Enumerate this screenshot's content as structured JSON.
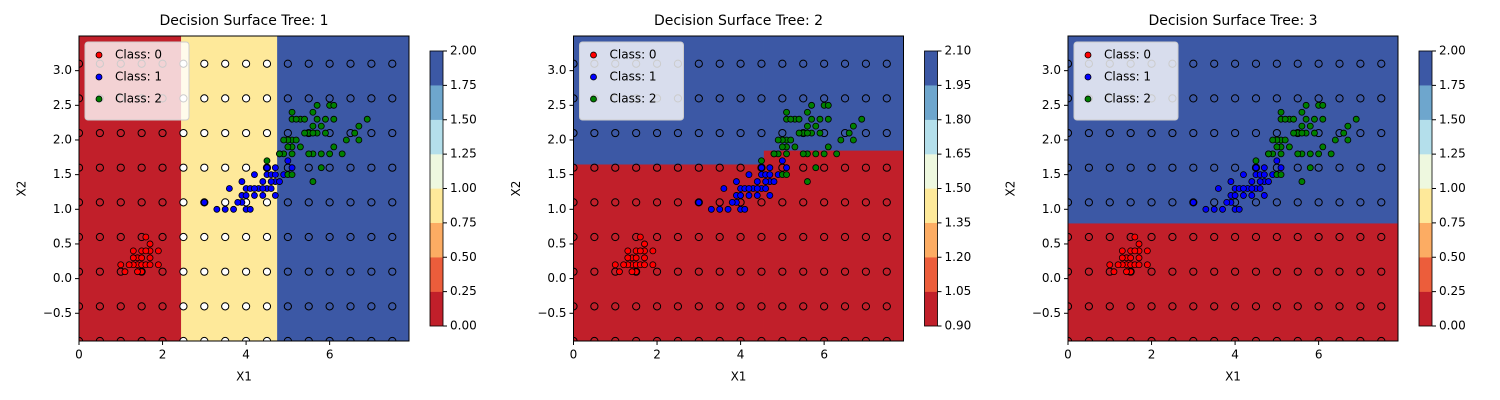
{
  "chart_data": [
    {
      "type": "scatter",
      "title": "Decision Surface Tree: 1",
      "xlabel": "X1",
      "ylabel": "X2",
      "xlim": [
        0,
        7.9
      ],
      "ylim": [
        -0.9,
        3.5
      ],
      "xticks": [
        0,
        2,
        4,
        6
      ],
      "yticks": [
        {
          "value": -0.5,
          "label": "−0.5"
        },
        {
          "value": 0,
          "label": "0.0"
        },
        0.5,
        {
          "value": 1,
          "label": "1.0"
        },
        1.5,
        {
          "value": 2,
          "label": "2.0"
        },
        2.5,
        {
          "value": 3,
          "label": "3.0"
        }
      ],
      "legend": "upper left",
      "regions": [
        {
          "x": [
            0,
            2.45
          ],
          "y": [
            -0.9,
            3.5
          ],
          "color": "#c11f2a"
        },
        {
          "x": [
            2.45,
            4.75
          ],
          "y": [
            -0.9,
            3.5
          ],
          "color": "#fee99a",
          "point_color": "#ffffff"
        },
        {
          "x": [
            4.75,
            7.9
          ],
          "y": [
            -0.9,
            3.5
          ],
          "color": "#3c58a5"
        }
      ],
      "grid_x": [
        0,
        0.5,
        1,
        1.5,
        2,
        2.5,
        3,
        3.5,
        4,
        4.5,
        5,
        5.5,
        6,
        6.5,
        7,
        7.5
      ],
      "grid_y": [
        -0.9,
        -0.4,
        0.1,
        0.6,
        1.1,
        1.6,
        2.1,
        2.6,
        3.1
      ],
      "colorbar": {
        "ticks": [
          {
            "value": 0,
            "label": "0.00"
          },
          0.25,
          {
            "value": 0.5,
            "label": "0.50"
          },
          0.75,
          {
            "value": 1,
            "label": "1.00"
          },
          1.25,
          {
            "value": 1.5,
            "label": "1.50"
          },
          1.75,
          {
            "value": 2,
            "label": "2.00"
          }
        ],
        "colors": [
          "#c11f2a",
          "#ec5d3b",
          "#fcac63",
          "#fee99a",
          "#eef8df",
          "#b4dfeb",
          "#6ea6cd",
          "#3c58a5"
        ]
      },
      "series": [
        {
          "name": "Class: 0",
          "color": "#ff0000",
          "x": [
            1.4,
            1.3,
            1.5,
            1.7,
            1.4,
            1.5,
            1.6,
            1.4,
            1.1,
            1.2,
            1.5,
            1.3,
            1.7,
            1.5,
            1.7,
            1.0,
            1.7,
            1.9,
            1.6,
            1.3,
            1.6,
            1.9
          ],
          "y": [
            0.2,
            0.2,
            0.2,
            0.4,
            0.3,
            0.1,
            0.2,
            0.1,
            0.1,
            0.2,
            0.4,
            0.4,
            0.3,
            0.3,
            0.2,
            0.2,
            0.5,
            0.2,
            0.4,
            0.3,
            0.6,
            0.4
          ]
        },
        {
          "name": "Class: 1",
          "color": "#0000ff",
          "x": [
            4.7,
            4.5,
            4.9,
            4.0,
            4.6,
            4.5,
            4.7,
            3.3,
            4.6,
            3.9,
            3.5,
            4.2,
            4.0,
            3.6,
            4.4,
            4.1,
            3.9,
            4.8,
            4.7,
            4.3,
            4.8,
            5.0,
            3.8,
            3.7,
            3.9,
            5.1,
            4.5,
            4.7,
            4.4,
            4.1,
            4.4,
            4.6,
            4.0,
            4.2,
            4.2,
            3.0
          ],
          "y": [
            1.4,
            1.5,
            1.5,
            1.3,
            1.5,
            1.3,
            1.6,
            1.0,
            1.3,
            1.4,
            1.0,
            1.5,
            1.0,
            1.3,
            1.4,
            1.0,
            1.1,
            1.8,
            1.2,
            1.3,
            1.4,
            1.7,
            1.1,
            1.0,
            1.2,
            1.6,
            1.6,
            1.5,
            1.3,
            1.3,
            1.2,
            1.4,
            1.2,
            1.3,
            1.2,
            1.1
          ]
        },
        {
          "name": "Class: 2",
          "color": "#008000",
          "x": [
            6.0,
            5.1,
            5.9,
            5.6,
            5.8,
            6.6,
            4.5,
            6.3,
            5.8,
            6.1,
            5.1,
            5.3,
            5.5,
            5.0,
            5.1,
            5.3,
            5.5,
            6.7,
            6.9,
            5.0,
            5.7,
            4.9,
            6.7,
            4.9,
            5.7,
            6.0,
            4.8,
            5.6,
            5.8,
            6.1,
            6.4,
            5.6,
            5.1,
            5.6,
            6.1,
            5.6,
            5.4,
            5.1,
            5.9,
            5.7,
            5.2,
            5.0,
            5.2,
            5.4,
            5.1
          ],
          "y": [
            2.5,
            1.9,
            2.1,
            1.8,
            2.2,
            2.1,
            1.7,
            1.8,
            1.8,
            2.5,
            2.0,
            1.9,
            2.1,
            2.0,
            2.4,
            2.3,
            1.8,
            2.2,
            2.3,
            1.5,
            2.3,
            2.0,
            2.0,
            1.8,
            2.1,
            1.8,
            1.8,
            2.1,
            1.6,
            1.9,
            2.0,
            2.2,
            1.5,
            1.4,
            2.3,
            2.4,
            2.1,
            2.3,
            2.3,
            2.5,
            2.3,
            1.9,
            2.0,
            2.3,
            1.8
          ]
        }
      ]
    },
    {
      "type": "scatter",
      "title": "Decision Surface Tree: 2",
      "xlabel": "X1",
      "ylabel": "X2",
      "xlim": [
        0,
        7.9
      ],
      "ylim": [
        -0.9,
        3.5
      ],
      "xticks": [
        0,
        2,
        4,
        6
      ],
      "yticks": [
        {
          "value": -0.5,
          "label": "−0.5"
        },
        {
          "value": 0,
          "label": "0.0"
        },
        0.5,
        {
          "value": 1,
          "label": "1.0"
        },
        1.5,
        {
          "value": 2,
          "label": "2.0"
        },
        2.5,
        {
          "value": 3,
          "label": "3.0"
        }
      ],
      "legend": "upper left",
      "regions": [
        {
          "x": [
            0,
            4.55
          ],
          "y": [
            -0.9,
            1.65
          ],
          "color": "#c11f2a"
        },
        {
          "x": [
            4.55,
            7.9
          ],
          "y": [
            -0.9,
            1.85
          ],
          "color": "#c11f2a"
        },
        {
          "x": [
            0,
            4.55
          ],
          "y": [
            1.65,
            3.5
          ],
          "color": "#3c58a5"
        },
        {
          "x": [
            4.55,
            7.9
          ],
          "y": [
            1.85,
            3.5
          ],
          "color": "#3c58a5"
        }
      ],
      "grid_x": [
        0,
        0.5,
        1,
        1.5,
        2,
        2.5,
        3,
        3.5,
        4,
        4.5,
        5,
        5.5,
        6,
        6.5,
        7,
        7.5
      ],
      "grid_y": [
        -0.9,
        -0.4,
        0.1,
        0.6,
        1.1,
        1.6,
        2.1,
        2.6,
        3.1
      ],
      "colorbar": {
        "ticks": [
          {
            "value": 0.9,
            "label": "0.90"
          },
          1.05,
          {
            "value": 1.2,
            "label": "1.20"
          },
          1.35,
          {
            "value": 1.5,
            "label": "1.50"
          },
          1.65,
          {
            "value": 1.8,
            "label": "1.80"
          },
          1.95,
          {
            "value": 2.1,
            "label": "2.10"
          }
        ],
        "colors": [
          "#c11f2a",
          "#ec5d3b",
          "#fcac63",
          "#fee99a",
          "#eef8df",
          "#b4dfeb",
          "#6ea6cd",
          "#3c58a5"
        ]
      },
      "series": [
        {
          "name": "Class: 0",
          "color": "#ff0000",
          "x": [
            1.4,
            1.3,
            1.5,
            1.7,
            1.4,
            1.5,
            1.6,
            1.4,
            1.1,
            1.2,
            1.5,
            1.3,
            1.7,
            1.5,
            1.7,
            1.0,
            1.7,
            1.9,
            1.6,
            1.3,
            1.6,
            1.9
          ],
          "y": [
            0.2,
            0.2,
            0.2,
            0.4,
            0.3,
            0.1,
            0.2,
            0.1,
            0.1,
            0.2,
            0.4,
            0.4,
            0.3,
            0.3,
            0.2,
            0.2,
            0.5,
            0.2,
            0.4,
            0.3,
            0.6,
            0.4
          ]
        },
        {
          "name": "Class: 1",
          "color": "#0000ff",
          "x": [
            4.7,
            4.5,
            4.9,
            4.0,
            4.6,
            4.5,
            4.7,
            3.3,
            4.6,
            3.9,
            3.5,
            4.2,
            4.0,
            3.6,
            4.4,
            4.1,
            3.9,
            4.8,
            4.7,
            4.3,
            4.8,
            5.0,
            3.8,
            3.7,
            3.9,
            5.1,
            4.5,
            4.7,
            4.4,
            4.1,
            4.4,
            4.6,
            4.0,
            4.2,
            4.2,
            3.0
          ],
          "y": [
            1.4,
            1.5,
            1.5,
            1.3,
            1.5,
            1.3,
            1.6,
            1.0,
            1.3,
            1.4,
            1.0,
            1.5,
            1.0,
            1.3,
            1.4,
            1.0,
            1.1,
            1.8,
            1.2,
            1.3,
            1.4,
            1.7,
            1.1,
            1.0,
            1.2,
            1.6,
            1.6,
            1.5,
            1.3,
            1.3,
            1.2,
            1.4,
            1.2,
            1.3,
            1.2,
            1.1
          ]
        },
        {
          "name": "Class: 2",
          "color": "#008000",
          "x": [
            6.0,
            5.1,
            5.9,
            5.6,
            5.8,
            6.6,
            4.5,
            6.3,
            5.8,
            6.1,
            5.1,
            5.3,
            5.5,
            5.0,
            5.1,
            5.3,
            5.5,
            6.7,
            6.9,
            5.0,
            5.7,
            4.9,
            6.7,
            4.9,
            5.7,
            6.0,
            4.8,
            5.6,
            5.8,
            6.1,
            6.4,
            5.6,
            5.1,
            5.6,
            6.1,
            5.6,
            5.4,
            5.1,
            5.9,
            5.7,
            5.2,
            5.0,
            5.2,
            5.4,
            5.1
          ],
          "y": [
            2.5,
            1.9,
            2.1,
            1.8,
            2.2,
            2.1,
            1.7,
            1.8,
            1.8,
            2.5,
            2.0,
            1.9,
            2.1,
            2.0,
            2.4,
            2.3,
            1.8,
            2.2,
            2.3,
            1.5,
            2.3,
            2.0,
            2.0,
            1.8,
            2.1,
            1.8,
            1.8,
            2.1,
            1.6,
            1.9,
            2.0,
            2.2,
            1.5,
            1.4,
            2.3,
            2.4,
            2.1,
            2.3,
            2.3,
            2.5,
            2.3,
            1.9,
            2.0,
            2.3,
            1.8
          ]
        }
      ]
    },
    {
      "type": "scatter",
      "title": "Decision Surface Tree: 3",
      "xlabel": "X1",
      "ylabel": "X2",
      "xlim": [
        0,
        7.9
      ],
      "ylim": [
        -0.9,
        3.5
      ],
      "xticks": [
        0,
        2,
        4,
        6
      ],
      "yticks": [
        {
          "value": -0.5,
          "label": "−0.5"
        },
        {
          "value": 0,
          "label": "0.0"
        },
        0.5,
        {
          "value": 1,
          "label": "1.0"
        },
        1.5,
        {
          "value": 2,
          "label": "2.0"
        },
        2.5,
        {
          "value": 3,
          "label": "3.0"
        }
      ],
      "legend": "upper left",
      "regions": [
        {
          "x": [
            0,
            7.9
          ],
          "y": [
            -0.9,
            0.8
          ],
          "color": "#c11f2a"
        },
        {
          "x": [
            0,
            7.9
          ],
          "y": [
            0.8,
            3.5
          ],
          "color": "#3c58a5"
        }
      ],
      "grid_x": [
        0,
        0.5,
        1,
        1.5,
        2,
        2.5,
        3,
        3.5,
        4,
        4.5,
        5,
        5.5,
        6,
        6.5,
        7,
        7.5
      ],
      "grid_y": [
        -0.9,
        -0.4,
        0.1,
        0.6,
        1.1,
        1.6,
        2.1,
        2.6,
        3.1
      ],
      "colorbar": {
        "ticks": [
          {
            "value": 0,
            "label": "0.00"
          },
          0.25,
          {
            "value": 0.5,
            "label": "0.50"
          },
          0.75,
          {
            "value": 1,
            "label": "1.00"
          },
          1.25,
          {
            "value": 1.5,
            "label": "1.50"
          },
          1.75,
          {
            "value": 2,
            "label": "2.00"
          }
        ],
        "colors": [
          "#c11f2a",
          "#ec5d3b",
          "#fcac63",
          "#fee99a",
          "#eef8df",
          "#b4dfeb",
          "#6ea6cd",
          "#3c58a5"
        ]
      },
      "series": [
        {
          "name": "Class: 0",
          "color": "#ff0000",
          "x": [
            1.4,
            1.3,
            1.5,
            1.7,
            1.4,
            1.5,
            1.6,
            1.4,
            1.1,
            1.2,
            1.5,
            1.3,
            1.7,
            1.5,
            1.7,
            1.0,
            1.7,
            1.9,
            1.6,
            1.3,
            1.6,
            1.9
          ],
          "y": [
            0.2,
            0.2,
            0.2,
            0.4,
            0.3,
            0.1,
            0.2,
            0.1,
            0.1,
            0.2,
            0.4,
            0.4,
            0.3,
            0.3,
            0.2,
            0.2,
            0.5,
            0.2,
            0.4,
            0.3,
            0.6,
            0.4
          ]
        },
        {
          "name": "Class: 1",
          "color": "#0000ff",
          "x": [
            4.7,
            4.5,
            4.9,
            4.0,
            4.6,
            4.5,
            4.7,
            3.3,
            4.6,
            3.9,
            3.5,
            4.2,
            4.0,
            3.6,
            4.4,
            4.1,
            3.9,
            4.8,
            4.7,
            4.3,
            4.8,
            5.0,
            3.8,
            3.7,
            3.9,
            5.1,
            4.5,
            4.7,
            4.4,
            4.1,
            4.4,
            4.6,
            4.0,
            4.2,
            4.2,
            3.0
          ],
          "y": [
            1.4,
            1.5,
            1.5,
            1.3,
            1.5,
            1.3,
            1.6,
            1.0,
            1.3,
            1.4,
            1.0,
            1.5,
            1.0,
            1.3,
            1.4,
            1.0,
            1.1,
            1.8,
            1.2,
            1.3,
            1.4,
            1.7,
            1.1,
            1.0,
            1.2,
            1.6,
            1.6,
            1.5,
            1.3,
            1.3,
            1.2,
            1.4,
            1.2,
            1.3,
            1.2,
            1.1
          ]
        },
        {
          "name": "Class: 2",
          "color": "#008000",
          "x": [
            6.0,
            5.1,
            5.9,
            5.6,
            5.8,
            6.6,
            4.5,
            6.3,
            5.8,
            6.1,
            5.1,
            5.3,
            5.5,
            5.0,
            5.1,
            5.3,
            5.5,
            6.7,
            6.9,
            5.0,
            5.7,
            4.9,
            6.7,
            4.9,
            5.7,
            6.0,
            4.8,
            5.6,
            5.8,
            6.1,
            6.4,
            5.6,
            5.1,
            5.6,
            6.1,
            5.6,
            5.4,
            5.1,
            5.9,
            5.7,
            5.2,
            5.0,
            5.2,
            5.4,
            5.1
          ],
          "y": [
            2.5,
            1.9,
            2.1,
            1.8,
            2.2,
            2.1,
            1.7,
            1.8,
            1.8,
            2.5,
            2.0,
            1.9,
            2.1,
            2.0,
            2.4,
            2.3,
            1.8,
            2.2,
            2.3,
            1.5,
            2.3,
            2.0,
            2.0,
            1.8,
            2.1,
            1.8,
            1.8,
            2.1,
            1.6,
            1.9,
            2.0,
            2.2,
            1.5,
            1.4,
            2.3,
            2.4,
            2.1,
            2.3,
            2.3,
            2.5,
            2.3,
            1.9,
            2.0,
            2.3,
            1.8
          ]
        }
      ]
    }
  ]
}
